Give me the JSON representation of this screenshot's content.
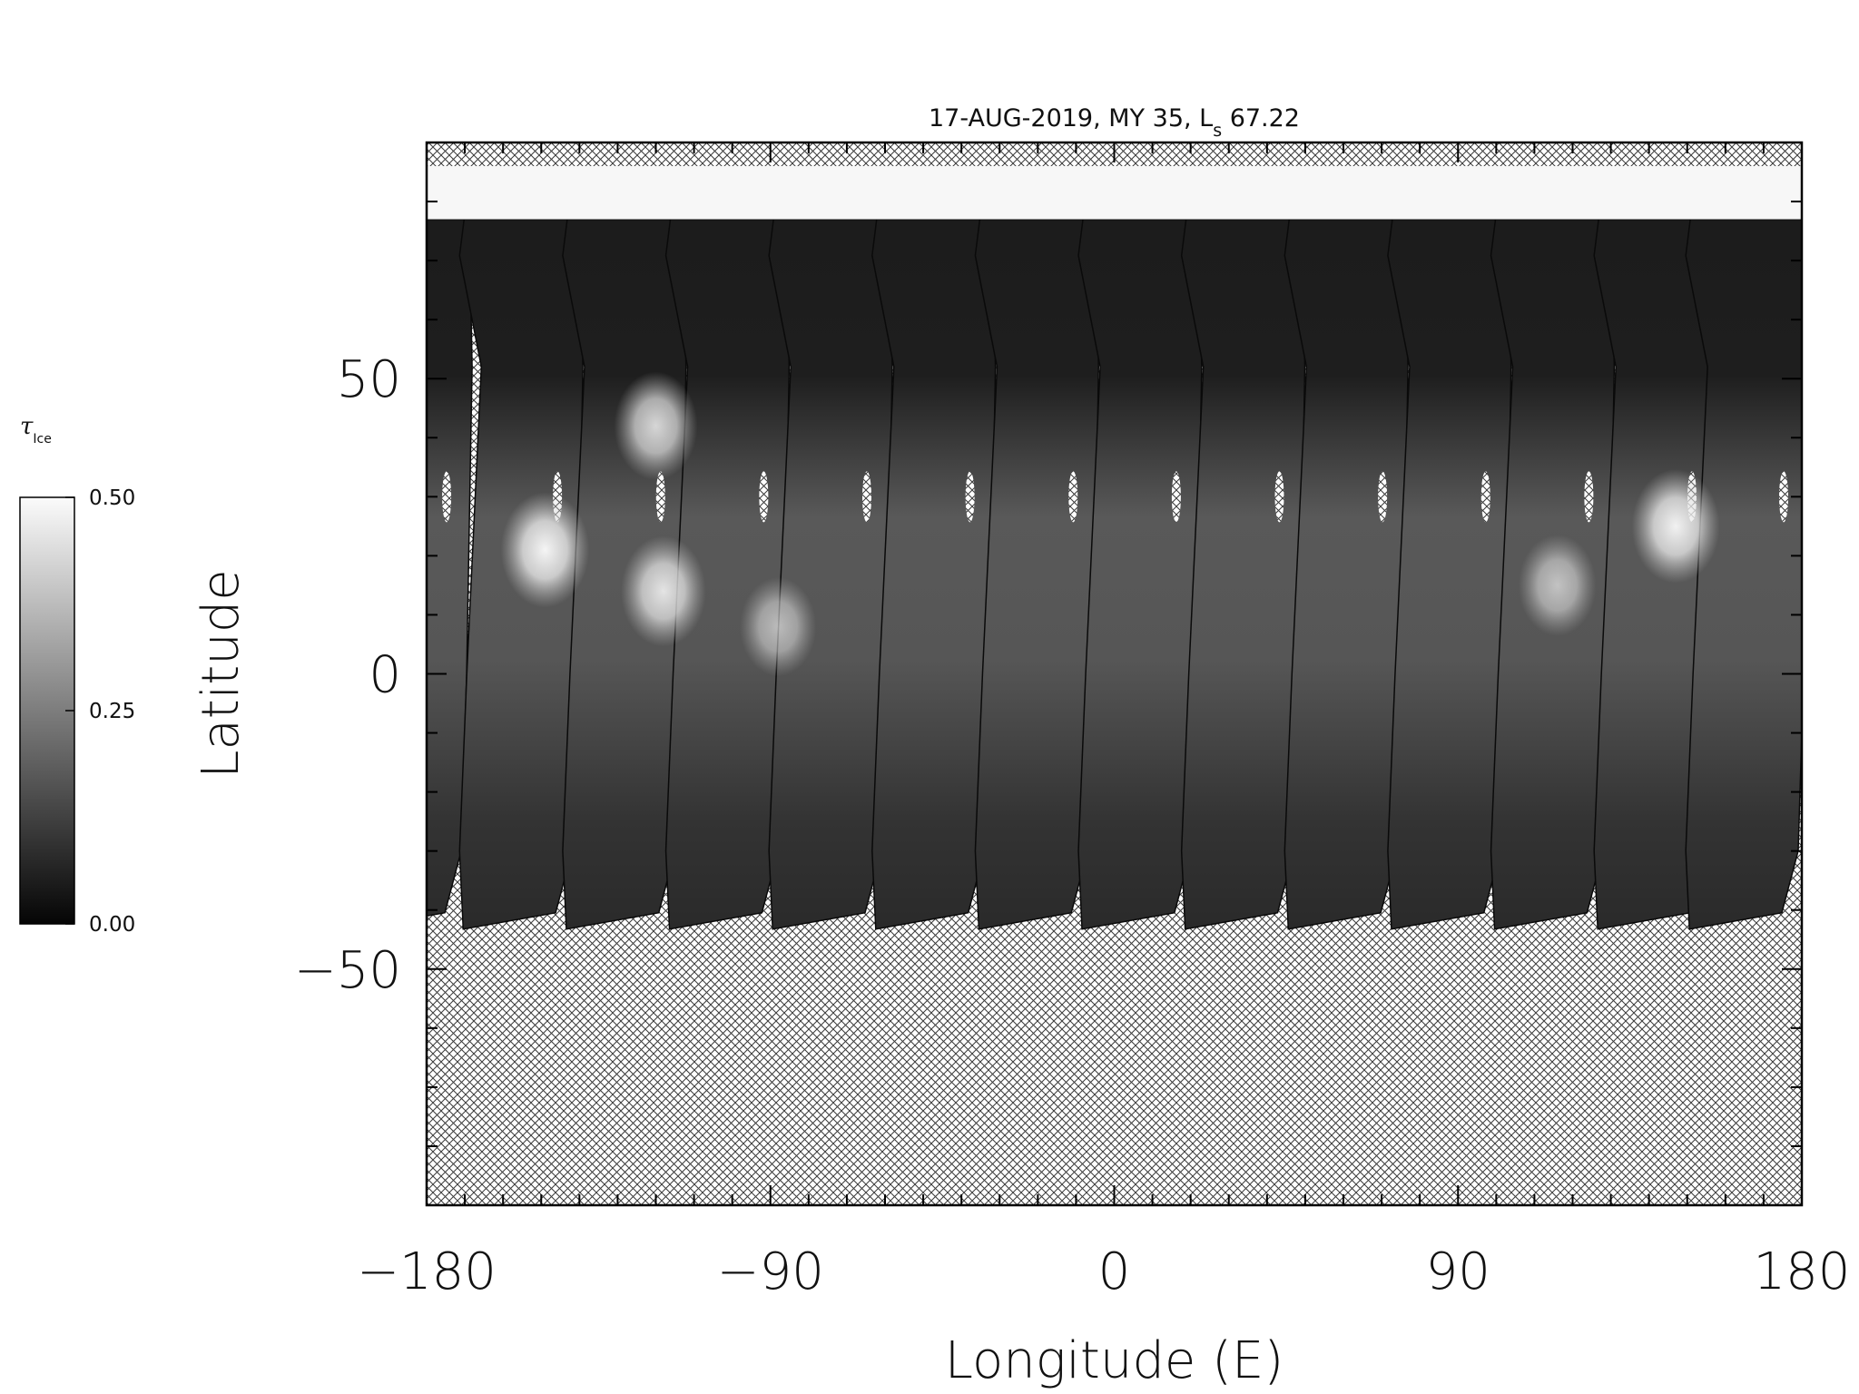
{
  "chart_data": {
    "type": "heatmap",
    "title": {
      "main": "17-AUG-2019, MY 35,  L",
      "sub": "s",
      "value": " 67.22"
    },
    "xlabel": "Longitude (E)",
    "ylabel": "Latitude",
    "xlim": [
      -180,
      180
    ],
    "ylim": [
      -90,
      90
    ],
    "x_ticks": [
      -180,
      -90,
      0,
      90,
      180
    ],
    "x_tick_labels": [
      "−180",
      "−90",
      "0",
      "90",
      "180"
    ],
    "y_ticks": [
      50,
      0,
      -50
    ],
    "y_tick_labels": [
      "50",
      "0",
      "−50"
    ],
    "x_minor_step": 10,
    "y_minor_step": 10,
    "colorbar": {
      "title": "τ",
      "title_sub": "Ice",
      "min": 0.0,
      "max": 0.5,
      "tick_values": [
        0.0,
        0.25,
        0.5
      ],
      "tick_labels": [
        "0.00",
        "0.25",
        "0.50"
      ]
    },
    "north_cap_lat": 77,
    "no_data_pattern": "crosshatch",
    "swaths": [
      {
        "east_lon": -170,
        "south_lat": -42
      },
      {
        "east_lon": -141,
        "south_lat": -42
      },
      {
        "east_lon": -114,
        "south_lat": -42
      },
      {
        "east_lon": -87,
        "south_lat": -42
      },
      {
        "east_lon": -60,
        "south_lat": -42
      },
      {
        "east_lon": -33,
        "south_lat": -42
      },
      {
        "east_lon": -6,
        "south_lat": -42
      },
      {
        "east_lon": 21,
        "south_lat": -42
      },
      {
        "east_lon": 48,
        "south_lat": -42
      },
      {
        "east_lon": 75,
        "south_lat": -42
      },
      {
        "east_lon": 102,
        "south_lat": -42
      },
      {
        "east_lon": 129,
        "south_lat": -42
      },
      {
        "east_lon": 156,
        "south_lat": -42
      },
      {
        "east_lon": 180,
        "south_lat": -42
      }
    ],
    "cloud_patches": [
      {
        "lon": -149,
        "lat": 21,
        "tau": 0.47
      },
      {
        "lon": -118,
        "lat": 14,
        "tau": 0.42
      },
      {
        "lon": -120,
        "lat": 42,
        "tau": 0.4
      },
      {
        "lon": -88,
        "lat": 8,
        "tau": 0.3
      },
      {
        "lon": 147,
        "lat": 25,
        "tau": 0.46
      },
      {
        "lon": 116,
        "lat": 15,
        "tau": 0.32
      }
    ]
  }
}
